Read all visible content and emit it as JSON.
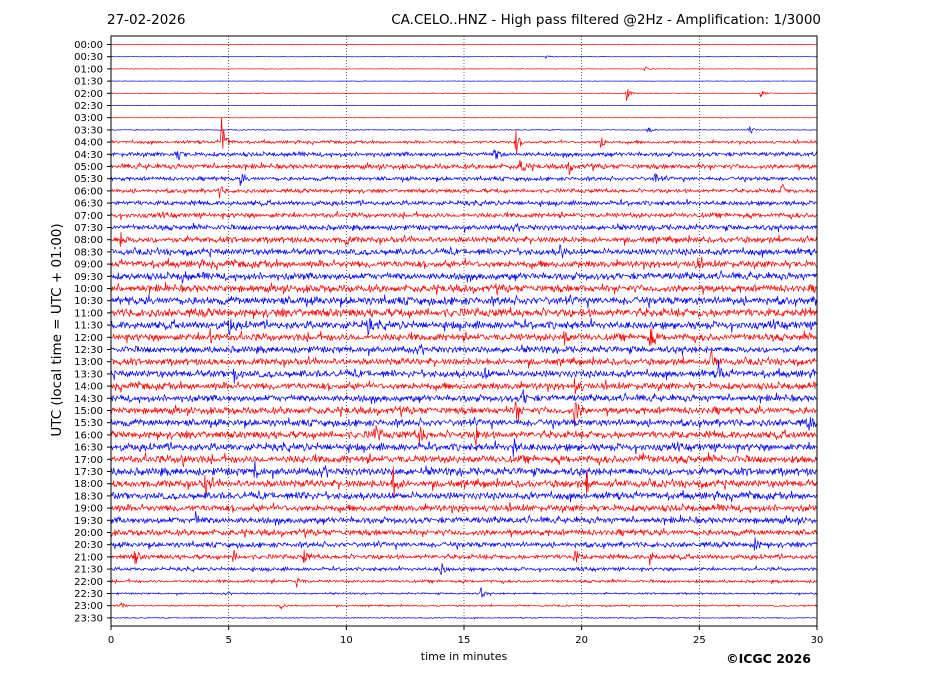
{
  "header": {
    "date": "27-02-2026",
    "title": "CA.CELO..HNZ - High pass filtered @2Hz - Amplification: 1/3000"
  },
  "footer": {
    "copyright": "©ICGC 2026"
  },
  "chart_data": {
    "type": "line",
    "title": "CA.CELO..HNZ - High pass filtered @2Hz - Amplification: 1/3000",
    "xlabel": "time in minutes",
    "ylabel": "UTC (local time = UTC + 01:00)",
    "xlim": [
      0,
      30
    ],
    "x_ticks": [
      "0",
      "5",
      "10",
      "15",
      "20",
      "25",
      "30"
    ],
    "x_tick_values": [
      0,
      5,
      10,
      15,
      20,
      25,
      30
    ],
    "grid": "vertical dotted lines at each x tick",
    "rows": [
      "00:00",
      "00:30",
      "01:00",
      "01:30",
      "02:00",
      "02:30",
      "03:00",
      "03:30",
      "04:00",
      "04:30",
      "05:00",
      "05:30",
      "06:00",
      "06:30",
      "07:00",
      "07:30",
      "08:00",
      "08:30",
      "09:00",
      "09:30",
      "10:00",
      "10:30",
      "11:00",
      "11:30",
      "12:00",
      "12:30",
      "13:00",
      "13:30",
      "14:00",
      "14:30",
      "15:00",
      "15:30",
      "16:00",
      "16:30",
      "17:00",
      "17:30",
      "18:00",
      "18:30",
      "19:00",
      "19:30",
      "20:00",
      "20:30",
      "21:00",
      "21:30",
      "22:00",
      "22:30",
      "23:00",
      "23:30"
    ],
    "row_colors": [
      "#ff0000",
      "#0000ff"
    ],
    "noise_level": [
      0.3,
      0.25,
      0.3,
      0.25,
      0.4,
      0.2,
      0.3,
      0.5,
      1.6,
      2.4,
      2.8,
      2.2,
      2.2,
      2.6,
      2.8,
      3.0,
      3.4,
      3.6,
      4.0,
      4.0,
      4.2,
      4.6,
      4.8,
      4.4,
      4.2,
      3.8,
      3.8,
      4.0,
      4.0,
      3.8,
      4.0,
      4.0,
      4.2,
      4.2,
      4.4,
      4.4,
      4.2,
      4.0,
      3.8,
      3.6,
      3.4,
      3.0,
      2.6,
      2.0,
      1.6,
      1.0,
      0.9,
      0.6
    ],
    "events": [
      {
        "row": 1,
        "t": 18.5,
        "amp": 3
      },
      {
        "row": 2,
        "t": 22.7,
        "amp": 4
      },
      {
        "row": 4,
        "t": 21.9,
        "amp": 8
      },
      {
        "row": 4,
        "t": 27.6,
        "amp": 6
      },
      {
        "row": 7,
        "t": 22.8,
        "amp": 5
      },
      {
        "row": 7,
        "t": 27.1,
        "amp": 8
      },
      {
        "row": 8,
        "t": 4.7,
        "amp": 30
      },
      {
        "row": 8,
        "t": 17.2,
        "amp": 14
      },
      {
        "row": 8,
        "t": 20.8,
        "amp": 9
      },
      {
        "row": 9,
        "t": 2.8,
        "amp": 8
      },
      {
        "row": 9,
        "t": 16.3,
        "amp": 8
      },
      {
        "row": 10,
        "t": 17.4,
        "amp": 14
      },
      {
        "row": 10,
        "t": 19.4,
        "amp": 10
      },
      {
        "row": 11,
        "t": 5.5,
        "amp": 8
      },
      {
        "row": 11,
        "t": 23.1,
        "amp": 8
      },
      {
        "row": 12,
        "t": 4.6,
        "amp": 8
      },
      {
        "row": 12,
        "t": 28.5,
        "amp": 8
      },
      {
        "row": 16,
        "t": 0.4,
        "amp": 9
      },
      {
        "row": 16,
        "t": 9.9,
        "amp": 10
      },
      {
        "row": 17,
        "t": 19.1,
        "amp": 9
      },
      {
        "row": 18,
        "t": 24.8,
        "amp": 10
      },
      {
        "row": 19,
        "t": 3.0,
        "amp": 10
      },
      {
        "row": 23,
        "t": 5.0,
        "amp": 10
      },
      {
        "row": 23,
        "t": 10.9,
        "amp": 9
      },
      {
        "row": 24,
        "t": 4.2,
        "amp": 11
      },
      {
        "row": 24,
        "t": 19.2,
        "amp": 12
      },
      {
        "row": 24,
        "t": 22.9,
        "amp": 13
      },
      {
        "row": 26,
        "t": 25.5,
        "amp": 12
      },
      {
        "row": 27,
        "t": 5.2,
        "amp": 12
      },
      {
        "row": 27,
        "t": 15.8,
        "amp": 9
      },
      {
        "row": 27,
        "t": 25.8,
        "amp": 12
      },
      {
        "row": 28,
        "t": 19.7,
        "amp": 10
      },
      {
        "row": 29,
        "t": 17.5,
        "amp": 9
      },
      {
        "row": 30,
        "t": 17.2,
        "amp": 14
      },
      {
        "row": 30,
        "t": 19.7,
        "amp": 18
      },
      {
        "row": 31,
        "t": 29.6,
        "amp": 10
      },
      {
        "row": 32,
        "t": 11.2,
        "amp": 12
      },
      {
        "row": 32,
        "t": 13.1,
        "amp": 12
      },
      {
        "row": 32,
        "t": 15.5,
        "amp": 9
      },
      {
        "row": 33,
        "t": 17.1,
        "amp": 10
      },
      {
        "row": 34,
        "t": 3.0,
        "amp": 10
      },
      {
        "row": 34,
        "t": 22.5,
        "amp": 9
      },
      {
        "row": 35,
        "t": 6.1,
        "amp": 9
      },
      {
        "row": 36,
        "t": 4.0,
        "amp": 14
      },
      {
        "row": 36,
        "t": 12.0,
        "amp": 16
      },
      {
        "row": 36,
        "t": 20.2,
        "amp": 10
      },
      {
        "row": 37,
        "t": 8.1,
        "amp": 9
      },
      {
        "row": 39,
        "t": 3.6,
        "amp": 8
      },
      {
        "row": 41,
        "t": 27.3,
        "amp": 10
      },
      {
        "row": 42,
        "t": 1.0,
        "amp": 9
      },
      {
        "row": 42,
        "t": 5.2,
        "amp": 7
      },
      {
        "row": 42,
        "t": 8.2,
        "amp": 7
      },
      {
        "row": 42,
        "t": 19.7,
        "amp": 8
      },
      {
        "row": 42,
        "t": 22.9,
        "amp": 9
      },
      {
        "row": 43,
        "t": 14.0,
        "amp": 9
      },
      {
        "row": 44,
        "t": 7.9,
        "amp": 6
      },
      {
        "row": 45,
        "t": 15.7,
        "amp": 7
      },
      {
        "row": 46,
        "t": 0.4,
        "amp": 4
      },
      {
        "row": 46,
        "t": 7.2,
        "amp": 4
      }
    ]
  }
}
